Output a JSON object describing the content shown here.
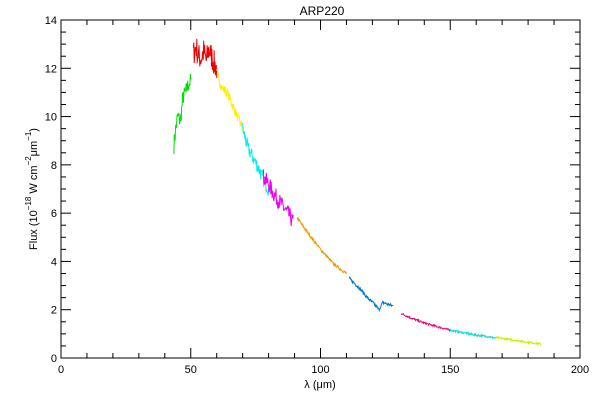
{
  "chart_data": {
    "type": "line",
    "title": "ARP220",
    "xlabel": "λ (μm)",
    "ylabel_parts": {
      "flux": "Flux (10",
      "exp1": "−18",
      "unit_w": " W cm",
      "exp2": "−2",
      "mu": "μm",
      "exp3": "−1",
      "close": ")"
    },
    "xlim": [
      0,
      200
    ],
    "ylim": [
      0,
      14
    ],
    "x_ticks": [
      "0",
      "50",
      "100",
      "150",
      "200"
    ],
    "y_ticks": [
      "0",
      "2",
      "4",
      "6",
      "8",
      "10",
      "12",
      "14"
    ],
    "x_tick_values": [
      0,
      50,
      100,
      150,
      200
    ],
    "y_tick_values": [
      0,
      2,
      4,
      6,
      8,
      10,
      12,
      14
    ],
    "grid": false,
    "legend": "none",
    "series": [
      {
        "color": "#00dd00",
        "x": [
          43.5,
          44.2,
          45.0,
          46.0,
          47.0,
          48.0,
          49.0,
          50.0
        ],
        "y": [
          8.8,
          9.5,
          10.0,
          9.8,
          10.8,
          11.0,
          11.3,
          11.5
        ],
        "noise": 0.35
      },
      {
        "color": "#ee0000",
        "x": [
          51.0,
          52.0,
          53.0,
          54.0,
          55.0,
          56.0,
          57.0,
          58.0,
          59.0,
          60.0
        ],
        "y": [
          12.6,
          12.9,
          12.5,
          12.4,
          12.7,
          12.3,
          12.8,
          12.5,
          12.2,
          12.0
        ],
        "noise": 0.55
      },
      {
        "color": "#ffee00",
        "x": [
          60.0,
          62.0,
          64.0,
          66.0,
          68.0,
          70.0
        ],
        "y": [
          11.8,
          11.2,
          11.0,
          10.5,
          10.0,
          9.5
        ],
        "noise": 0.2
      },
      {
        "color": "#00eeee",
        "x": [
          70.0,
          72.0,
          74.0,
          76.0,
          78.0,
          80.0
        ],
        "y": [
          9.5,
          8.7,
          8.3,
          7.9,
          7.4,
          7.0
        ],
        "noise": 0.3
      },
      {
        "color": "#ee00ee",
        "x": [
          78.0,
          80.0,
          82.0,
          84.0,
          86.0,
          88.0,
          89.5
        ],
        "y": [
          7.5,
          7.2,
          6.8,
          6.5,
          6.2,
          5.9,
          5.6
        ],
        "noise": 0.35
      },
      {
        "color": "#ee9900",
        "x": [
          91.0,
          95.0,
          100.0,
          105.0,
          110.0
        ],
        "y": [
          5.8,
          5.2,
          4.5,
          3.9,
          3.5
        ],
        "noise": 0.06
      },
      {
        "color": "#0077cc",
        "x": [
          111.0,
          115.0,
          118.0,
          121.0,
          122.5,
          124.0,
          128.0
        ],
        "y": [
          3.3,
          2.9,
          2.5,
          2.2,
          2.0,
          2.3,
          2.15
        ],
        "noise": 0.07
      },
      {
        "color": "#ee0077",
        "x": [
          131.0,
          135.0,
          140.0,
          145.0,
          150.0
        ],
        "y": [
          1.85,
          1.65,
          1.45,
          1.3,
          1.15
        ],
        "noise": 0.04
      },
      {
        "color": "#00dddd",
        "x": [
          150.0,
          155.0,
          160.0,
          165.0,
          167.5
        ],
        "y": [
          1.15,
          1.05,
          0.95,
          0.88,
          0.82
        ],
        "noise": 0.04
      },
      {
        "color": "#ccee00",
        "x": [
          167.5,
          172.0,
          176.0,
          180.0,
          185.0
        ],
        "y": [
          0.85,
          0.78,
          0.72,
          0.65,
          0.58
        ],
        "noise": 0.04
      }
    ]
  }
}
